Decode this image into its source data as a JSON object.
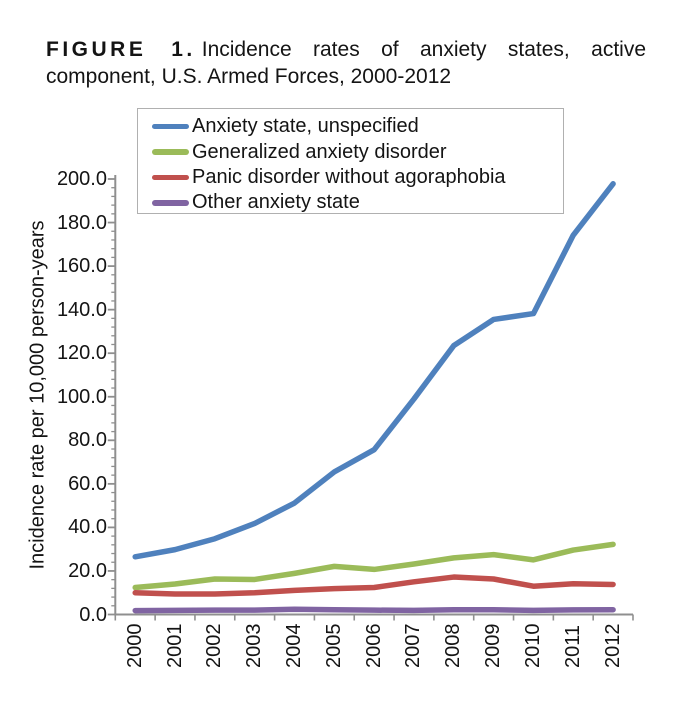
{
  "figure": {
    "label": "FIGURE 1.",
    "title_line1": "Incidence rates of anxiety states, active",
    "title_line2": "component, U.S. Armed Forces, 2000-2012"
  },
  "chart_data": {
    "type": "line",
    "title": "FIGURE 1. Incidence rates of anxiety states, active component, U.S. Armed Forces, 2000-2012",
    "xlabel": "",
    "ylabel": "Incidence rate per 10,000 person-years",
    "ylim": [
      0,
      200
    ],
    "ytick_step": 20,
    "ytick_minor_step": 4,
    "ytick_decimals": 1,
    "grid": false,
    "legend_position": "top-inside-box",
    "axis_color": "#8f8f8f",
    "categories": [
      "2000",
      "2001",
      "2002",
      "2003",
      "2004",
      "2005",
      "2006",
      "2007",
      "2008",
      "2009",
      "2010",
      "2011",
      "2012"
    ],
    "series": [
      {
        "name": "Anxiety state, unspecified",
        "color": "#4F81BD",
        "values": [
          26.5,
          29.8,
          34.8,
          41.8,
          51.2,
          65.5,
          75.7,
          99.0,
          123.5,
          135.5,
          138.2,
          174.2,
          197.8
        ]
      },
      {
        "name": "Generalized anxiety disorder",
        "color": "#9BBB59",
        "values": [
          12.4,
          14.0,
          16.3,
          16.1,
          18.9,
          22.1,
          20.7,
          23.2,
          26.0,
          27.5,
          25.1,
          29.6,
          32.2
        ]
      },
      {
        "name": "Panic disorder without agoraphobia",
        "color": "#C0504D",
        "values": [
          10.0,
          9.4,
          9.4,
          10.0,
          11.1,
          11.9,
          12.4,
          15.0,
          17.2,
          16.3,
          13.0,
          14.1,
          13.8
        ]
      },
      {
        "name": "Other anxiety state",
        "color": "#8064A2",
        "values": [
          1.8,
          1.9,
          2.0,
          2.0,
          2.4,
          2.2,
          2.0,
          1.9,
          2.2,
          2.2,
          1.9,
          2.1,
          2.2
        ]
      }
    ]
  }
}
